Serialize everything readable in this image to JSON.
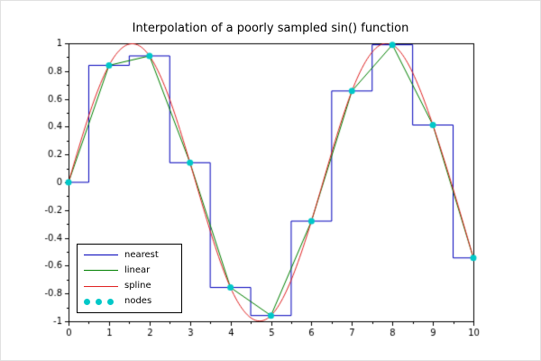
{
  "chart_data": {
    "type": "line",
    "title": "Interpolation of a poorly sampled sin() function",
    "xlabel": "",
    "ylabel": "",
    "xlim": [
      0,
      10
    ],
    "ylim": [
      -1,
      1
    ],
    "x_ticks": [
      0,
      1,
      2,
      3,
      4,
      5,
      6,
      7,
      8,
      9,
      10
    ],
    "y_ticks": [
      -1,
      -0.8,
      -0.6,
      -0.4,
      -0.2,
      0,
      0.2,
      0.4,
      0.6,
      0.8,
      1
    ],
    "grid": false,
    "nodes": {
      "x": [
        0,
        1,
        2,
        3,
        4,
        5,
        6,
        7,
        8,
        9,
        10
      ],
      "y": [
        0,
        0.8415,
        0.9093,
        0.1411,
        -0.7568,
        -0.9589,
        -0.2794,
        0.657,
        0.9894,
        0.4121,
        -0.544
      ]
    },
    "series": [
      {
        "name": "nearest",
        "type": "step-nearest",
        "color": "#0000bb"
      },
      {
        "name": "linear",
        "type": "linear",
        "color": "#008000"
      },
      {
        "name": "spline",
        "type": "cubic-spline",
        "color": "#e02222"
      },
      {
        "name": "nodes",
        "type": "points",
        "color": "#00c8c8"
      }
    ],
    "legend": {
      "position": "lower-left",
      "entries": [
        {
          "label": "nearest",
          "marker": "line"
        },
        {
          "label": "linear",
          "marker": "line"
        },
        {
          "label": "spline",
          "marker": "line"
        },
        {
          "label": "nodes",
          "marker": "dots"
        }
      ]
    }
  }
}
